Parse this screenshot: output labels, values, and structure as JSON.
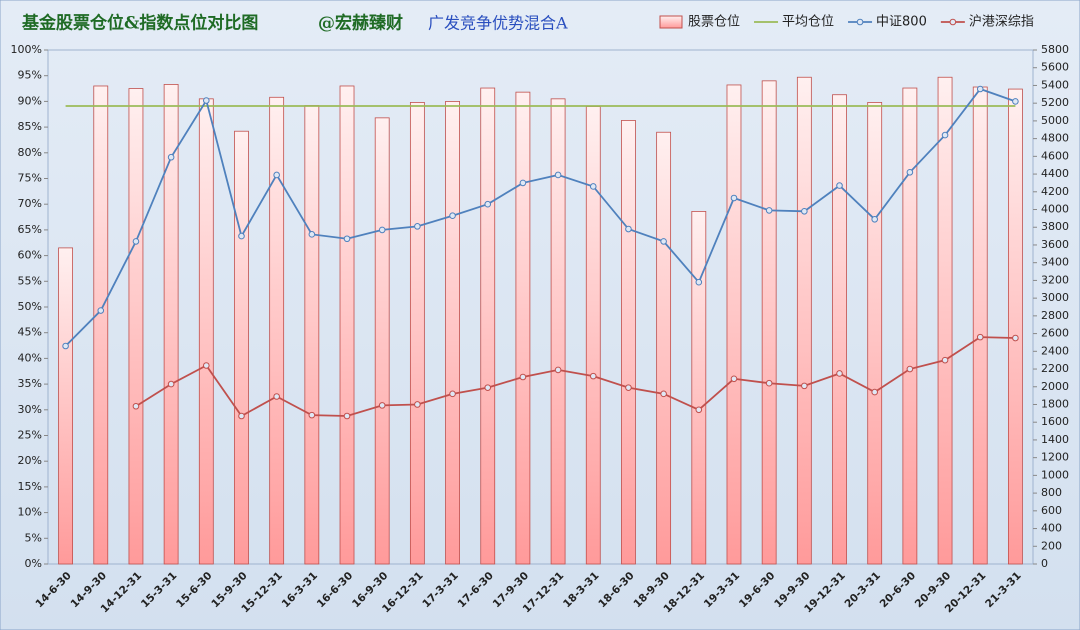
{
  "chart_data": {
    "type": "combo",
    "title": "基金股票仓位&指数点位对比图",
    "subtitle": "@宏赫臻财",
    "fund": "广发竞争优势混合A",
    "categories": [
      "14-6-30",
      "14-9-30",
      "14-12-31",
      "15-3-31",
      "15-6-30",
      "15-9-30",
      "15-12-31",
      "16-3-31",
      "16-6-30",
      "16-9-30",
      "16-12-31",
      "17-3-31",
      "17-6-30",
      "17-9-30",
      "17-12-31",
      "18-3-31",
      "18-6-30",
      "18-9-30",
      "18-12-31",
      "19-3-31",
      "19-6-30",
      "19-9-30",
      "19-12-31",
      "20-3-31",
      "20-6-30",
      "20-9-30",
      "20-12-31",
      "21-3-31"
    ],
    "series": [
      {
        "name": "股票仓位",
        "type": "bar",
        "color": "#f4a6a6",
        "values": [
          61.5,
          93,
          92.5,
          93.3,
          90.5,
          84.2,
          90.8,
          89.2,
          93,
          86.8,
          89.8,
          90,
          92.6,
          91.8,
          90.5,
          89,
          86.3,
          84,
          68.6,
          93.2,
          94,
          94.7,
          91.3,
          89.8,
          92.6,
          94.7,
          92.8,
          92.4
        ]
      },
      {
        "name": "平均仓位",
        "type": "line",
        "color": "#9bbb59",
        "values": [
          89.1,
          89.1,
          89.1,
          89.1,
          89.1,
          89.1,
          89.1,
          89.1,
          89.1,
          89.1,
          89.1,
          89.1,
          89.1,
          89.1,
          89.1,
          89.1,
          89.1,
          89.1,
          89.1,
          89.1,
          89.1,
          89.1,
          89.1,
          89.1,
          89.1,
          89.1,
          89.1,
          89.1
        ]
      },
      {
        "name": "中证800",
        "type": "line",
        "markers": true,
        "axis": "y2",
        "color": "#4f81bd",
        "values": [
          2460,
          2860,
          3640,
          4590,
          5230,
          3700,
          4390,
          3720,
          3670,
          3770,
          3810,
          3930,
          4060,
          4300,
          4390,
          4260,
          3780,
          3640,
          3180,
          4130,
          3990,
          3980,
          4270,
          3890,
          4420,
          4840,
          5360,
          5220
        ]
      },
      {
        "name": "沪港深综指",
        "type": "line",
        "markers": true,
        "axis": "y2",
        "color": "#c0504d",
        "values": [
          null,
          null,
          1780,
          2030,
          2240,
          1670,
          1890,
          1680,
          1670,
          1790,
          1800,
          1920,
          1990,
          2110,
          2190,
          2120,
          1990,
          1920,
          1740,
          2090,
          2040,
          2010,
          2150,
          1940,
          2200,
          2300,
          2560,
          2550
        ]
      }
    ],
    "ylim": [
      0,
      100
    ],
    "yticks": [
      {
        "value": 0,
        "label": "0%"
      },
      {
        "value": 5,
        "label": "5%"
      },
      {
        "value": 10,
        "label": "10%"
      },
      {
        "value": 15,
        "label": "15%"
      },
      {
        "value": 20,
        "label": "20%"
      },
      {
        "value": 25,
        "label": "25%"
      },
      {
        "value": 30,
        "label": "30%"
      },
      {
        "value": 35,
        "label": "35%"
      },
      {
        "value": 40,
        "label": "40%"
      },
      {
        "value": 45,
        "label": "45%"
      },
      {
        "value": 50,
        "label": "50%"
      },
      {
        "value": 55,
        "label": "55%"
      },
      {
        "value": 60,
        "label": "60%"
      },
      {
        "value": 65,
        "label": "65%"
      },
      {
        "value": 70,
        "label": "70%"
      },
      {
        "value": 75,
        "label": "75%"
      },
      {
        "value": 80,
        "label": "80%"
      },
      {
        "value": 85,
        "label": "85%"
      },
      {
        "value": 90,
        "label": "90%"
      },
      {
        "value": 95,
        "label": "95%"
      },
      {
        "value": 100,
        "label": "100%"
      }
    ],
    "y2lim": [
      0,
      5800
    ],
    "y2ticks": [
      0,
      200,
      400,
      600,
      800,
      1000,
      1200,
      1400,
      1600,
      1800,
      2000,
      2200,
      2400,
      2600,
      2800,
      3000,
      3200,
      3400,
      3600,
      3800,
      4000,
      4200,
      4400,
      4600,
      4800,
      5000,
      5200,
      5400,
      5600,
      5800
    ],
    "legend": "top-right"
  }
}
